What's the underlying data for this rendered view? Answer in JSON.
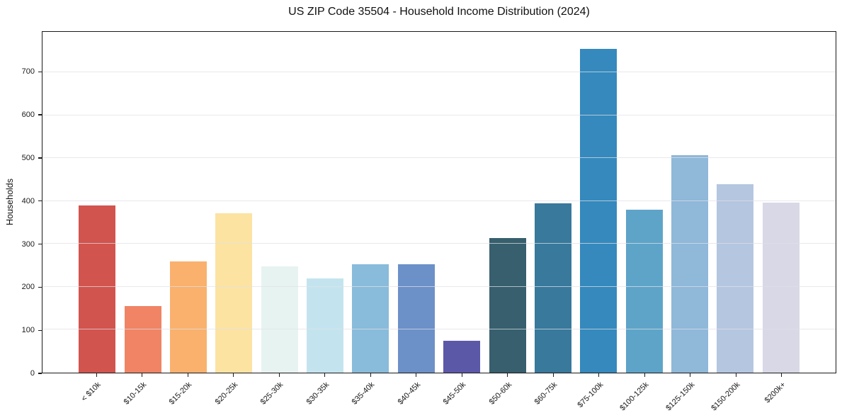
{
  "chart_data": {
    "type": "bar",
    "title": "US ZIP Code 35504 - Household Income Distribution (2024)",
    "xlabel": "",
    "ylabel": "Households",
    "categories": [
      "< $10k",
      "$10-15k",
      "$15-20k",
      "$20-25k",
      "$25-30k",
      "$30-35k",
      "$35-40k",
      "$40-45k",
      "$45-50k",
      "$50-60k",
      "$60-75k",
      "$75-100k",
      "$100-125k",
      "$125-150k",
      "$150-200k",
      "$200k+"
    ],
    "values": [
      389,
      156,
      259,
      372,
      247,
      220,
      253,
      252,
      74,
      314,
      395,
      755,
      379,
      507,
      439,
      396
    ],
    "bar_colors": [
      "#d2544e",
      "#f08465",
      "#f9b16d",
      "#fce3a2",
      "#e7f3f1",
      "#c3e4ee",
      "#89bbda",
      "#6c90c8",
      "#5c58a8",
      "#375f6e",
      "#38799c",
      "#3589bd",
      "#5ea4c9",
      "#8fb8d9",
      "#b5c6e0",
      "#d8d8e6"
    ],
    "yticks": [
      0,
      100,
      200,
      300,
      400,
      500,
      600,
      700
    ],
    "ylim": [
      0,
      794
    ],
    "grid": true,
    "gridline_color": "#e8e8e8",
    "spine_color": "#1a1a1a",
    "background": "#ffffff",
    "legend_position": "none"
  }
}
